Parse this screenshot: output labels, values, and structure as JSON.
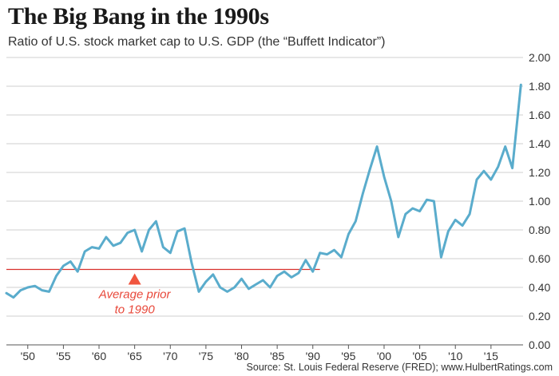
{
  "title": "The Big Bang in the 1990s",
  "subtitle": "Ratio of U.S. stock market cap to U.S. GDP (the “Buffett Indicator”)",
  "source": "Source: St. Louis Federal Reserve (FRED); www.HulbertRatings.com",
  "colors": {
    "line": "#5aaccc",
    "reference": "#d9302c",
    "grid": "#cfcfcf",
    "text": "#333333"
  },
  "chart_data": {
    "type": "line",
    "x_ticks": [
      {
        "value": 1950,
        "label": "'50"
      },
      {
        "value": 1955,
        "label": "'55"
      },
      {
        "value": 1960,
        "label": "'60"
      },
      {
        "value": 1965,
        "label": "'65"
      },
      {
        "value": 1970,
        "label": "'70"
      },
      {
        "value": 1975,
        "label": "'75"
      },
      {
        "value": 1980,
        "label": "'80"
      },
      {
        "value": 1985,
        "label": "'85"
      },
      {
        "value": 1990,
        "label": "'90"
      },
      {
        "value": 1995,
        "label": "'95"
      },
      {
        "value": 2000,
        "label": "'00"
      },
      {
        "value": 2005,
        "label": "'05"
      },
      {
        "value": 2010,
        "label": "'10"
      },
      {
        "value": 2015,
        "label": "'15"
      }
    ],
    "y_ticks": [
      "0.00",
      "0.20",
      "0.40",
      "0.60",
      "0.80",
      "1.00",
      "1.20",
      "1.40",
      "1.60",
      "1.80",
      "2.00"
    ],
    "xlim": [
      1947,
      2019.5
    ],
    "ylim": [
      0,
      2.0
    ],
    "grid": "horizontal",
    "y_axis_side": "right",
    "x": [
      1947,
      1948,
      1949,
      1950,
      1951,
      1952,
      1953,
      1954,
      1955,
      1956,
      1957,
      1958,
      1959,
      1960,
      1961,
      1962,
      1963,
      1964,
      1965,
      1966,
      1967,
      1968,
      1969,
      1970,
      1971,
      1972,
      1973,
      1974,
      1975,
      1976,
      1977,
      1978,
      1979,
      1980,
      1981,
      1982,
      1983,
      1984,
      1985,
      1986,
      1987,
      1988,
      1989,
      1990,
      1991,
      1992,
      1993,
      1994,
      1995,
      1996,
      1997,
      1998,
      1999,
      2000,
      2001,
      2002,
      2003,
      2004,
      2005,
      2006,
      2007,
      2008,
      2009,
      2010,
      2011,
      2012,
      2013,
      2014,
      2015,
      2016,
      2017,
      2018,
      2019.2
    ],
    "values": [
      0.36,
      0.33,
      0.38,
      0.4,
      0.41,
      0.38,
      0.37,
      0.48,
      0.55,
      0.58,
      0.51,
      0.65,
      0.68,
      0.67,
      0.75,
      0.69,
      0.71,
      0.78,
      0.8,
      0.65,
      0.8,
      0.86,
      0.68,
      0.64,
      0.79,
      0.81,
      0.57,
      0.37,
      0.44,
      0.49,
      0.4,
      0.37,
      0.4,
      0.46,
      0.39,
      0.42,
      0.45,
      0.4,
      0.48,
      0.51,
      0.47,
      0.5,
      0.59,
      0.51,
      0.64,
      0.63,
      0.66,
      0.61,
      0.77,
      0.86,
      1.05,
      1.22,
      1.38,
      1.17,
      1.0,
      0.75,
      0.91,
      0.95,
      0.93,
      1.01,
      1.0,
      0.61,
      0.79,
      0.87,
      0.83,
      0.91,
      1.15,
      1.21,
      1.15,
      1.24,
      1.38,
      1.23,
      1.81
    ],
    "reference_line": {
      "value": 0.525,
      "x_start": 1947,
      "x_end": 1991
    },
    "annotation": {
      "text_line1": "Average prior",
      "text_line2": "to 1990",
      "x": 1965
    }
  }
}
